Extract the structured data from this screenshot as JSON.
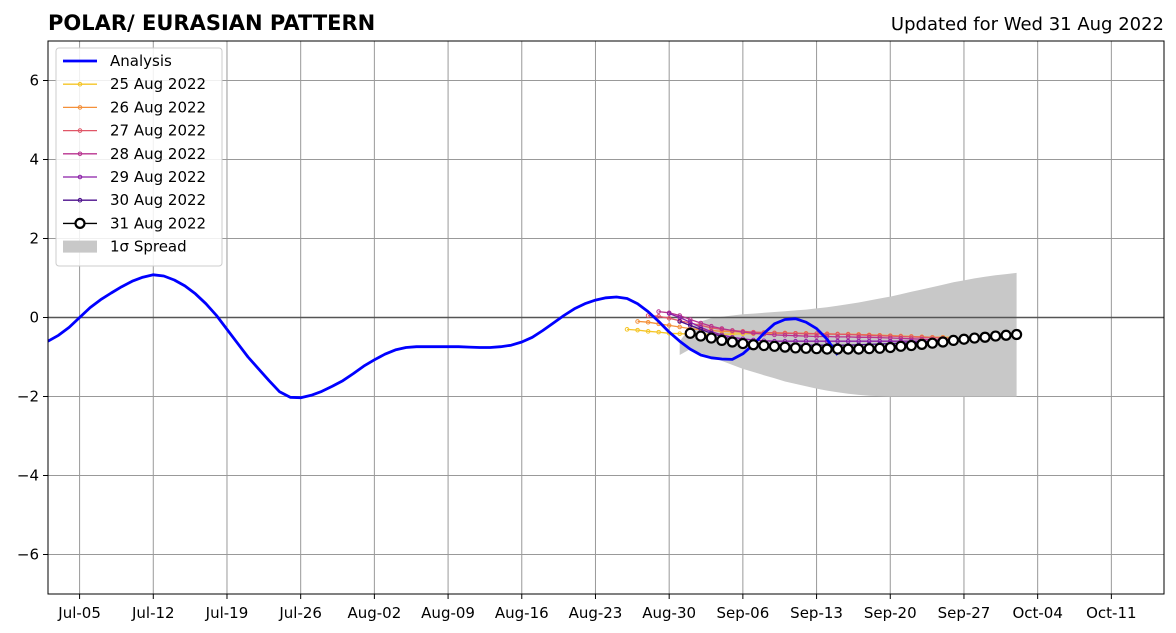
{
  "header": {
    "title": "POLAR/ EURASIAN  PATTERN",
    "updated": "Updated for Wed 31 Aug 2022"
  },
  "chart_data": {
    "type": "line",
    "title": "POLAR/ EURASIAN  PATTERN",
    "subtitle": "Updated for Wed 31 Aug 2022",
    "xlabel": "",
    "ylabel": "",
    "x_axis_type": "date",
    "xlim": [
      "2022-07-02",
      "2022-10-16"
    ],
    "ylim": [
      -7,
      7
    ],
    "grid": true,
    "legend_position": "top-left",
    "x_ticks": [
      {
        "date": "2022-07-05",
        "label": "Jul-05"
      },
      {
        "date": "2022-07-12",
        "label": "Jul-12"
      },
      {
        "date": "2022-07-19",
        "label": "Jul-19"
      },
      {
        "date": "2022-07-26",
        "label": "Jul-26"
      },
      {
        "date": "2022-08-02",
        "label": "Aug-02"
      },
      {
        "date": "2022-08-09",
        "label": "Aug-09"
      },
      {
        "date": "2022-08-16",
        "label": "Aug-16"
      },
      {
        "date": "2022-08-23",
        "label": "Aug-23"
      },
      {
        "date": "2022-08-30",
        "label": "Aug-30"
      },
      {
        "date": "2022-09-06",
        "label": "Sep-06"
      },
      {
        "date": "2022-09-13",
        "label": "Sep-13"
      },
      {
        "date": "2022-09-20",
        "label": "Sep-20"
      },
      {
        "date": "2022-09-27",
        "label": "Sep-27"
      },
      {
        "date": "2022-10-04",
        "label": "Oct-04"
      },
      {
        "date": "2022-10-11",
        "label": "Oct-11"
      }
    ],
    "y_ticks": [
      {
        "value": -6,
        "label": "−6"
      },
      {
        "value": -4,
        "label": "−4"
      },
      {
        "value": -2,
        "label": "−2"
      },
      {
        "value": 0,
        "label": "0"
      },
      {
        "value": 2,
        "label": "2"
      },
      {
        "value": 4,
        "label": "4"
      },
      {
        "value": 6,
        "label": "6"
      }
    ],
    "analysis": {
      "name": "Analysis",
      "color": "#0000ff",
      "x_start": "2022-07-02",
      "values": [
        -0.6,
        -0.45,
        -0.25,
        0.0,
        0.25,
        0.45,
        0.62,
        0.78,
        0.92,
        1.02,
        1.08,
        1.05,
        0.95,
        0.8,
        0.6,
        0.35,
        0.05,
        -0.3,
        -0.65,
        -1.0,
        -1.3,
        -1.6,
        -1.88,
        -2.02,
        -2.03,
        -1.97,
        -1.87,
        -1.74,
        -1.6,
        -1.42,
        -1.23,
        -1.07,
        -0.93,
        -0.82,
        -0.76,
        -0.74,
        -0.74,
        -0.74,
        -0.74,
        -0.74,
        -0.75,
        -0.76,
        -0.76,
        -0.74,
        -0.7,
        -0.62,
        -0.5,
        -0.33,
        -0.14,
        0.05,
        0.22,
        0.35,
        0.44,
        0.5,
        0.52,
        0.48,
        0.35,
        0.15,
        -0.1,
        -0.37,
        -0.6,
        -0.8,
        -0.95,
        -1.02,
        -1.05,
        -1.06,
        -0.92,
        -0.68,
        -0.4,
        -0.16,
        -0.05,
        -0.03,
        -0.12,
        -0.28,
        -0.55,
        -0.95
      ]
    },
    "forecasts": [
      {
        "name": "25 Aug 2022",
        "color": "#f5c526",
        "x_start": "2022-08-26",
        "values": [
          -0.3,
          -0.32,
          -0.35,
          -0.37,
          -0.4,
          -0.41,
          -0.42,
          -0.42,
          -0.43,
          -0.42,
          -0.42,
          -0.41,
          -0.41,
          -0.4,
          -0.4,
          -0.4,
          -0.4,
          -0.41,
          -0.41,
          -0.42,
          -0.42,
          -0.43,
          -0.43,
          -0.44,
          -0.45,
          -0.46,
          -0.47,
          -0.48,
          -0.49,
          -0.5,
          -0.5,
          -0.5
        ]
      },
      {
        "name": "26 Aug 2022",
        "color": "#f4903a",
        "x_start": "2022-08-27",
        "values": [
          -0.1,
          -0.12,
          -0.16,
          -0.2,
          -0.24,
          -0.28,
          -0.31,
          -0.33,
          -0.35,
          -0.36,
          -0.37,
          -0.38,
          -0.38,
          -0.39,
          -0.39,
          -0.4,
          -0.4,
          -0.41,
          -0.41,
          -0.42,
          -0.42,
          -0.43,
          -0.44,
          -0.45,
          -0.46,
          -0.47,
          -0.48,
          -0.49,
          -0.5,
          -0.5
        ]
      },
      {
        "name": "27 Aug 2022",
        "color": "#e05667",
        "x_start": "2022-08-28",
        "values": [
          0.05,
          0.03,
          -0.02,
          -0.08,
          -0.14,
          -0.2,
          -0.26,
          -0.3,
          -0.33,
          -0.35,
          -0.37,
          -0.38,
          -0.39,
          -0.4,
          -0.4,
          -0.41,
          -0.41,
          -0.42,
          -0.42,
          -0.43,
          -0.44,
          -0.45,
          -0.46,
          -0.47,
          -0.48,
          -0.49,
          -0.5,
          -0.51,
          -0.52,
          -0.52
        ]
      },
      {
        "name": "28 Aug 2022",
        "color": "#b8338f",
        "x_start": "2022-08-29",
        "values": [
          0.15,
          0.12,
          0.05,
          -0.05,
          -0.14,
          -0.22,
          -0.28,
          -0.33,
          -0.37,
          -0.4,
          -0.42,
          -0.44,
          -0.45,
          -0.46,
          -0.47,
          -0.48,
          -0.48,
          -0.49,
          -0.49,
          -0.5,
          -0.5,
          -0.51,
          -0.52,
          -0.53,
          -0.54,
          -0.55,
          -0.56,
          -0.57,
          -0.58,
          -0.58
        ]
      },
      {
        "name": "29 Aug 2022",
        "color": "#8b1fa8",
        "x_start": "2022-08-30",
        "values": [
          0.1,
          0.0,
          -0.12,
          -0.25,
          -0.36,
          -0.44,
          -0.5,
          -0.54,
          -0.57,
          -0.59,
          -0.6,
          -0.6,
          -0.6,
          -0.6,
          -0.6,
          -0.6,
          -0.6,
          -0.6,
          -0.6,
          -0.6,
          -0.6,
          -0.6,
          -0.6,
          -0.6,
          -0.6,
          -0.6,
          -0.6,
          -0.6,
          -0.58,
          -0.55
        ]
      },
      {
        "name": "30 Aug 2022",
        "color": "#4b0f8c",
        "x_start": "2022-08-31",
        "values": [
          -0.1,
          -0.2,
          -0.3,
          -0.4,
          -0.48,
          -0.55,
          -0.6,
          -0.64,
          -0.67,
          -0.69,
          -0.7,
          -0.7,
          -0.7,
          -0.7,
          -0.7,
          -0.7,
          -0.7,
          -0.69,
          -0.68,
          -0.67,
          -0.66,
          -0.65,
          -0.64,
          -0.62,
          -0.6,
          -0.58,
          -0.56,
          -0.54,
          -0.52
        ]
      }
    ],
    "latest": {
      "name": "31 Aug 2022",
      "color": "#000000",
      "marker_fill": "#ffffff",
      "x_start": "2022-09-01",
      "values": [
        -0.4,
        -0.47,
        -0.52,
        -0.58,
        -0.62,
        -0.66,
        -0.69,
        -0.71,
        -0.73,
        -0.75,
        -0.77,
        -0.78,
        -0.79,
        -0.8,
        -0.8,
        -0.8,
        -0.8,
        -0.79,
        -0.78,
        -0.76,
        -0.73,
        -0.71,
        -0.68,
        -0.65,
        -0.62,
        -0.58,
        -0.55,
        -0.52,
        -0.5,
        -0.47,
        -0.45,
        -0.43
      ]
    },
    "spread": {
      "name": "1σ Spread",
      "color": "#c8c8c8",
      "x_start": "2022-08-31",
      "upper": [
        -0.6,
        -0.25,
        -0.1,
        -0.02,
        0.02,
        0.05,
        0.08,
        0.1,
        0.12,
        0.14,
        0.16,
        0.18,
        0.2,
        0.23,
        0.26,
        0.3,
        0.34,
        0.38,
        0.43,
        0.48,
        0.53,
        0.59,
        0.65,
        0.71,
        0.77,
        0.83,
        0.89,
        0.94,
        0.99,
        1.03,
        1.07,
        1.1,
        1.13
      ],
      "lower": [
        -0.95,
        -0.8,
        -0.9,
        -1.0,
        -1.1,
        -1.2,
        -1.3,
        -1.38,
        -1.46,
        -1.54,
        -1.62,
        -1.68,
        -1.74,
        -1.8,
        -1.85,
        -1.89,
        -1.93,
        -1.96,
        -1.98,
        -1.99,
        -2.0,
        -2.0,
        -2.0,
        -2.0,
        -2.0,
        -2.0,
        -2.0,
        -2.0,
        -2.0,
        -2.0,
        -2.0,
        -2.0,
        -2.0
      ]
    }
  }
}
